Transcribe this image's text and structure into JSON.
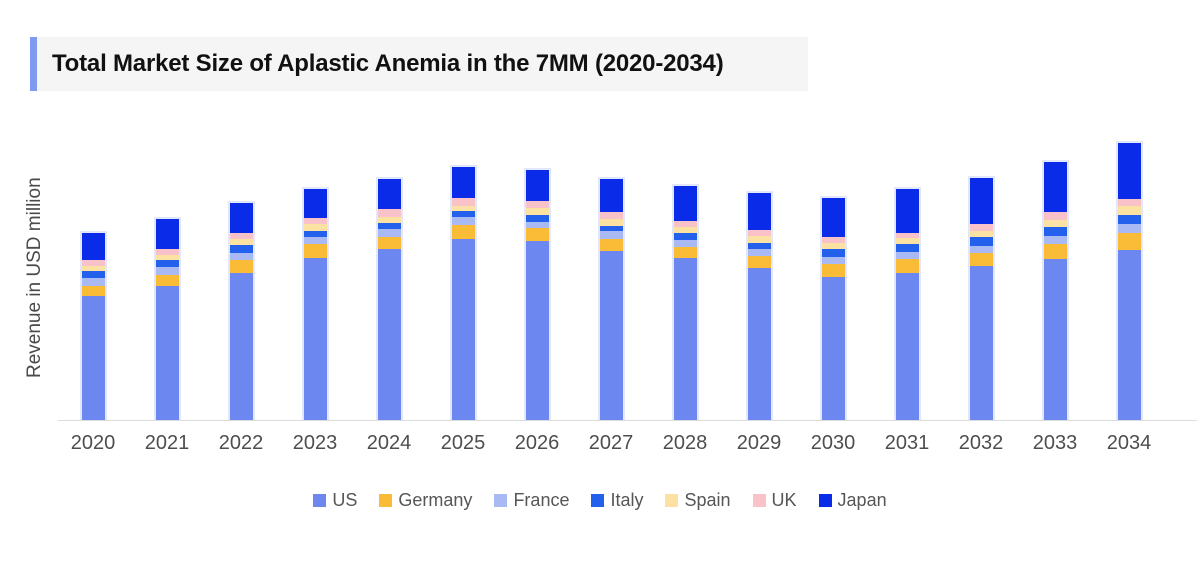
{
  "header": {
    "title": "Total Market Size of Aplastic Anemia in the 7MM (2020-2034)",
    "accent_color": "#7D9BF3",
    "background_color": "#F5F5F5",
    "text_color": "#111111"
  },
  "chart_data": {
    "type": "bar",
    "stacked": true,
    "title": "Total Market Size of Aplastic Anemia in the 7MM (2020-2034)",
    "xlabel": "",
    "ylabel": "Revenue in USD million",
    "categories": [
      "2020",
      "2021",
      "2022",
      "2023",
      "2024",
      "2025",
      "2026",
      "2027",
      "2028",
      "2029",
      "2030",
      "2031",
      "2032",
      "2033",
      "2034"
    ],
    "series": [
      {
        "name": "US",
        "color": "#6D87F0",
        "values": [
          124,
          134,
          147,
          162,
          171,
          181,
          179,
          169,
          162,
          152,
          143,
          147,
          154,
          161,
          170
        ]
      },
      {
        "name": "Germany",
        "color": "#FABB37",
        "values": [
          10,
          11,
          13,
          14,
          12,
          14,
          13,
          12,
          11,
          12,
          13,
          14,
          13,
          15,
          17
        ]
      },
      {
        "name": "France",
        "color": "#A9B9F3",
        "values": [
          8,
          8,
          7,
          7,
          8,
          8,
          6,
          8,
          7,
          7,
          7,
          7,
          7,
          8,
          9
        ]
      },
      {
        "name": "Italy",
        "color": "#2360EB",
        "values": [
          7,
          7,
          8,
          6,
          6,
          6,
          7,
          5,
          7,
          6,
          8,
          8,
          9,
          9,
          9
        ]
      },
      {
        "name": "Spain",
        "color": "#FCE2A2",
        "values": [
          5,
          5,
          6,
          7,
          6,
          5,
          7,
          7,
          6,
          7,
          6,
          6,
          6,
          7,
          9
        ]
      },
      {
        "name": "UK",
        "color": "#F9C2C8",
        "values": [
          6,
          6,
          6,
          6,
          8,
          8,
          7,
          7,
          6,
          6,
          6,
          5,
          7,
          8,
          7
        ]
      },
      {
        "name": "Japan",
        "color": "#0A2BE8",
        "values": [
          27,
          30,
          30,
          29,
          30,
          31,
          31,
          33,
          35,
          37,
          39,
          44,
          46,
          50,
          56
        ]
      }
    ],
    "totals": [
      187,
      201,
      217,
      231,
      241,
      253,
      250,
      241,
      234,
      227,
      222,
      231,
      242,
      258,
      277
    ],
    "ylim": [
      0,
      285
    ],
    "grid": false,
    "legend_position": "bottom",
    "axis_line_color": "#DCDCDC",
    "bar_outline_color": "#E2E7FB",
    "axis_text_color": "#4E4E4E",
    "note": "No numeric y-axis tick labels are shown in the chart; series values are stacked segment sizes in relative units read from the rendered bars (baseline 0 at the x-axis)."
  }
}
